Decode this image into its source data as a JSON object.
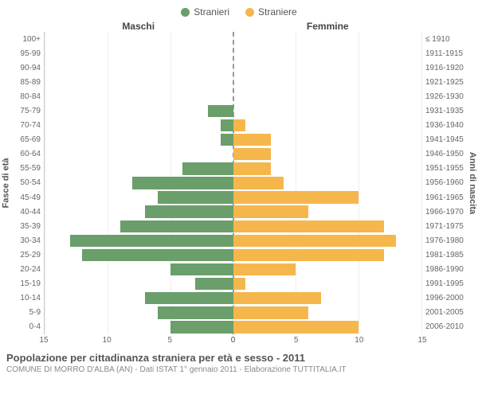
{
  "legend": {
    "male": {
      "label": "Stranieri",
      "color": "#6a9e6a"
    },
    "female": {
      "label": "Straniere",
      "color": "#f5b74c"
    }
  },
  "headers": {
    "male": "Maschi",
    "female": "Femmine"
  },
  "axis_left_title": "Fasce di età",
  "axis_right_title": "Anni di nascita",
  "title": "Popolazione per cittadinanza straniera per età e sesso - 2011",
  "subtitle": "COMUNE DI MORRO D'ALBA (AN) - Dati ISTAT 1° gennaio 2011 - Elaborazione TUTTITALIA.IT",
  "xmax": 15,
  "xticks_left": [
    15,
    10,
    5,
    0
  ],
  "xticks_right": [
    0,
    5,
    10,
    15
  ],
  "grid_color": "#eeeeee",
  "centerline_color": "#999999",
  "background": "#ffffff",
  "rows": [
    {
      "age": "100+",
      "birth": "≤ 1910",
      "m": 0,
      "f": 0
    },
    {
      "age": "95-99",
      "birth": "1911-1915",
      "m": 0,
      "f": 0
    },
    {
      "age": "90-94",
      "birth": "1916-1920",
      "m": 0,
      "f": 0
    },
    {
      "age": "85-89",
      "birth": "1921-1925",
      "m": 0,
      "f": 0
    },
    {
      "age": "80-84",
      "birth": "1926-1930",
      "m": 0,
      "f": 0
    },
    {
      "age": "75-79",
      "birth": "1931-1935",
      "m": 2,
      "f": 0
    },
    {
      "age": "70-74",
      "birth": "1936-1940",
      "m": 1,
      "f": 1
    },
    {
      "age": "65-69",
      "birth": "1941-1945",
      "m": 1,
      "f": 3
    },
    {
      "age": "60-64",
      "birth": "1946-1950",
      "m": 0,
      "f": 3
    },
    {
      "age": "55-59",
      "birth": "1951-1955",
      "m": 4,
      "f": 3
    },
    {
      "age": "50-54",
      "birth": "1956-1960",
      "m": 8,
      "f": 4
    },
    {
      "age": "45-49",
      "birth": "1961-1965",
      "m": 6,
      "f": 10
    },
    {
      "age": "40-44",
      "birth": "1966-1970",
      "m": 7,
      "f": 6
    },
    {
      "age": "35-39",
      "birth": "1971-1975",
      "m": 9,
      "f": 12
    },
    {
      "age": "30-34",
      "birth": "1976-1980",
      "m": 13,
      "f": 13
    },
    {
      "age": "25-29",
      "birth": "1981-1985",
      "m": 12,
      "f": 12
    },
    {
      "age": "20-24",
      "birth": "1986-1990",
      "m": 5,
      "f": 5
    },
    {
      "age": "15-19",
      "birth": "1991-1995",
      "m": 3,
      "f": 1
    },
    {
      "age": "10-14",
      "birth": "1996-2000",
      "m": 7,
      "f": 7
    },
    {
      "age": "5-9",
      "birth": "2001-2005",
      "m": 6,
      "f": 6
    },
    {
      "age": "0-4",
      "birth": "2006-2010",
      "m": 5,
      "f": 10
    }
  ]
}
